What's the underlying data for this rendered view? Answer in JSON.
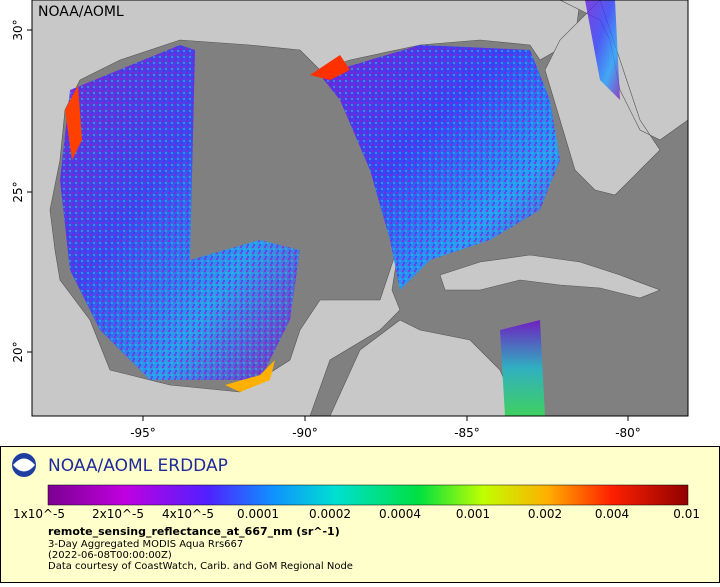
{
  "map": {
    "title": "NOAA/AOML",
    "x_ticks": [
      "-95°",
      "-90°",
      "-85°",
      "-80°"
    ],
    "y_ticks": [
      "30°",
      "25°",
      "20°"
    ]
  },
  "legend": {
    "brand": "NOAA/AOML ERDDAP",
    "colorbar_labels": [
      "1x10^-5",
      "2x10^-5",
      "4x10^-5",
      "0.0001",
      "0.0002",
      "0.0004",
      "0.001",
      "0.002",
      "0.004",
      "0.01"
    ],
    "variable": "remote_sensing_reflectance_at_667_nm (sr^-1)",
    "lines": [
      "3-Day Aggregated MODIS Aqua Rrs667",
      "(2022-06-08T00:00:00Z)",
      "Data courtesy of CoastWatch, Carib. and GoM Regional Node"
    ]
  }
}
